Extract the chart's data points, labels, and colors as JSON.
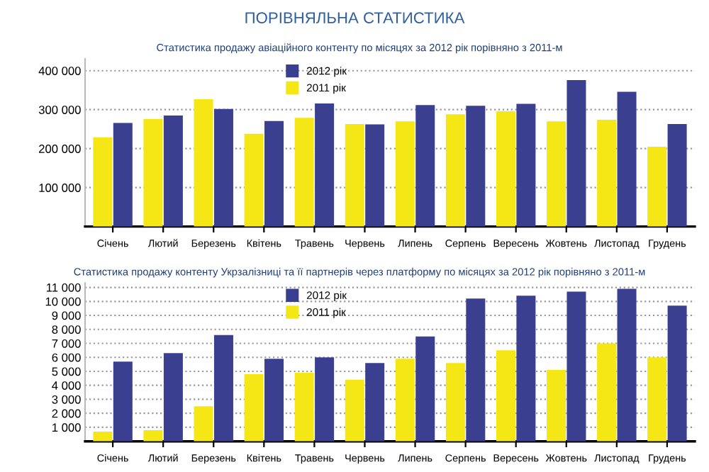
{
  "chart_data": [
    {
      "type": "bar",
      "title": "ПОРІВНЯЛЬНА СТАТИСТИКА",
      "subtitle": "Статистика продажу авіаційного контенту по місяцях за 2012 рік порівняно з 2011-м",
      "categories": [
        "Січень",
        "Лютий",
        "Березень",
        "Квітень",
        "Травень",
        "Червень",
        "Липень",
        "Серпень",
        "Вересень",
        "Жовтень",
        "Листопад",
        "Грудень"
      ],
      "series": [
        {
          "name": "2011 рік",
          "color": "#f5e616",
          "values": [
            229000,
            276000,
            327000,
            238000,
            279000,
            263000,
            270000,
            288000,
            296000,
            270000,
            274000,
            205000
          ]
        },
        {
          "name": "2012 рік",
          "color": "#3b3f8f",
          "values": [
            266000,
            285000,
            302000,
            271000,
            316000,
            262000,
            312000,
            310000,
            315000,
            376000,
            346000,
            263000
          ]
        }
      ],
      "ylim": [
        0,
        430000
      ],
      "yticks": [
        {
          "value": 100000,
          "label": "100 000"
        },
        {
          "value": 200000,
          "label": "200 000"
        },
        {
          "value": 300000,
          "label": "300 000"
        },
        {
          "value": 400000,
          "label": "400 000"
        }
      ],
      "grid": "y",
      "legend": "top"
    },
    {
      "type": "bar",
      "subtitle": "Статистика продажу контенту Укрзалізниці та її партнерів через платформу по місяцях за 2012 рік порівняно з 2011-м",
      "categories": [
        "Січень",
        "Лютий",
        "Березень",
        "Квітень",
        "Травень",
        "Червень",
        "Липень",
        "Серпень",
        "Вересень",
        "Жовтень",
        "Листопад",
        "Грудень"
      ],
      "series": [
        {
          "name": "2011 рік",
          "color": "#f5e616",
          "values": [
            700,
            800,
            2500,
            4800,
            4900,
            4400,
            5900,
            5600,
            6500,
            5100,
            7000,
            6000
          ]
        },
        {
          "name": "2012 рік",
          "color": "#3b3f8f",
          "values": [
            5700,
            6300,
            7600,
            5900,
            6000,
            5600,
            7500,
            10200,
            10400,
            10700,
            10900,
            9700
          ]
        }
      ],
      "ylim": [
        0,
        11300
      ],
      "yticks": [
        {
          "value": 1000,
          "label": "1 000"
        },
        {
          "value": 2000,
          "label": "2 000"
        },
        {
          "value": 3000,
          "label": "3 000"
        },
        {
          "value": 4000,
          "label": "4 000"
        },
        {
          "value": 5000,
          "label": "5 000"
        },
        {
          "value": 6000,
          "label": "6 000"
        },
        {
          "value": 7000,
          "label": "7 000"
        },
        {
          "value": 8000,
          "label": "8 000"
        },
        {
          "value": 9000,
          "label": "9 000"
        },
        {
          "value": 10000,
          "label": "10 000"
        },
        {
          "value": 11000,
          "label": "11 000"
        }
      ],
      "grid": "y",
      "legend": "top"
    }
  ]
}
